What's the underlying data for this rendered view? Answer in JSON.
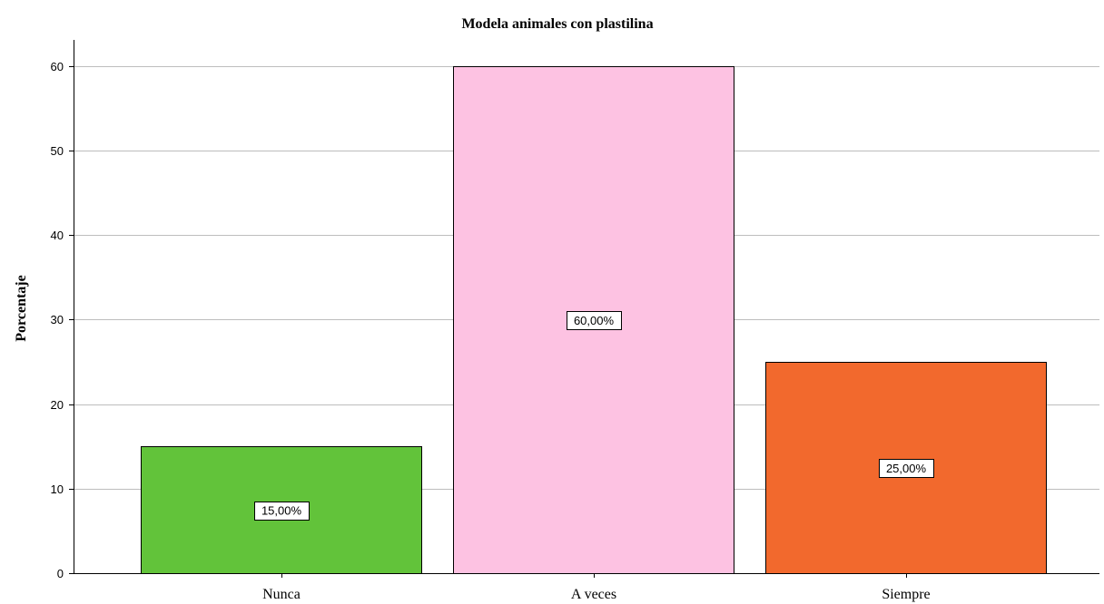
{
  "chart_data": {
    "type": "bar",
    "title": "Modela animales con plastilina",
    "xlabel": "",
    "ylabel": "Porcentaje",
    "ylim": [
      0,
      63
    ],
    "yticks": [
      0,
      10,
      20,
      30,
      40,
      50,
      60
    ],
    "ytick_labels": [
      "0",
      "10",
      "20",
      "30",
      "40",
      "50",
      "60"
    ],
    "grid": true,
    "categories": [
      "Nunca",
      "A veces",
      "Siempre"
    ],
    "values": [
      15,
      60,
      25
    ],
    "data_labels": [
      "15,00%",
      "60,00%",
      "25,00%"
    ],
    "colors": [
      "#62c33a",
      "#fdc2e2",
      "#f2692d"
    ]
  }
}
